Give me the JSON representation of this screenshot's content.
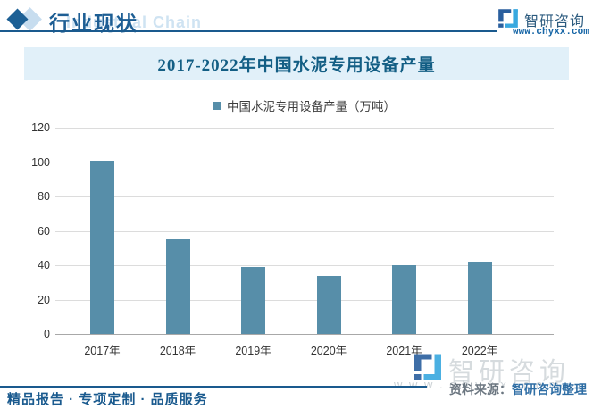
{
  "header": {
    "section_title": "行业现状",
    "background_watermark": "Industrial Chain",
    "logo_name": "智研咨询",
    "logo_url": "www.chyxx.com"
  },
  "chart_data": {
    "type": "bar",
    "title": "2017-2022年中国水泥专用设备产量",
    "legend": "中国水泥专用设备产量（万吨）",
    "legend_position": "top",
    "categories": [
      "2017年",
      "2018年",
      "2019年",
      "2020年",
      "2021年",
      "2022年"
    ],
    "values": [
      101,
      55,
      39,
      34,
      40,
      42
    ],
    "ylabel": "",
    "xlabel": "",
    "ylim": [
      0,
      120
    ],
    "yticks": [
      0,
      20,
      40,
      60,
      80,
      100,
      120
    ],
    "grid": true,
    "bar_color": "#578ea9"
  },
  "footer": {
    "services": "精品报告 · 专项定制 · 品质服务",
    "source_label": "资料来源：",
    "source_value": "智研咨询整理",
    "watermark_logo_name": "智研咨询",
    "watermark_url": "w w w . c h y x x . c o m"
  },
  "colors": {
    "accent_blue": "#1a5a8e",
    "title_band_bg": "#e1f0f9",
    "title_text": "#135e84",
    "bar": "#578ea9",
    "gridline": "#dcdcdc",
    "source_value_blue": "#2e6da4"
  }
}
